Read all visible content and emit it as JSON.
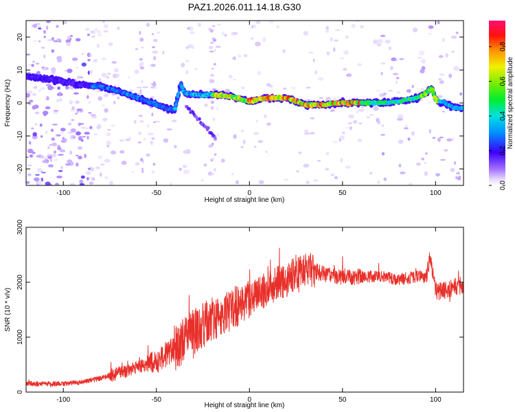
{
  "title": "PAZ1.2026.011.14.18.G30",
  "chart_data": [
    {
      "type": "heatmap",
      "title": "PAZ1.2026.011.14.18.G30",
      "xlabel": "Height of straight line (km)",
      "ylabel": "Frequency (Hz)",
      "xlim": [
        -120,
        115
      ],
      "ylim": [
        -25,
        25
      ],
      "xticks": [
        {
          "value": -100,
          "label": "-100"
        },
        {
          "value": -50,
          "label": "-50"
        },
        {
          "value": 0,
          "label": "0"
        },
        {
          "value": 50,
          "label": "50"
        },
        {
          "value": 100,
          "label": "100"
        }
      ],
      "yticks": [
        {
          "value": -20,
          "label": "-20"
        },
        {
          "value": -10,
          "label": "-10"
        },
        {
          "value": 0,
          "label": "0"
        },
        {
          "value": 10,
          "label": "10"
        },
        {
          "value": 20,
          "label": "20"
        }
      ],
      "colorbar": {
        "label": "Normalized spectral amplitude",
        "range": [
          0,
          0.95
        ],
        "ticks": [
          {
            "value": 0.0,
            "label": "0.0"
          },
          {
            "value": 0.2,
            "label": "0.2"
          },
          {
            "value": 0.4,
            "label": "0.4"
          },
          {
            "value": 0.6,
            "label": "0.6"
          },
          {
            "value": 0.8,
            "label": "0.8"
          }
        ]
      },
      "ridge": {
        "x": [
          -120,
          -110,
          -100,
          -90,
          -80,
          -70,
          -60,
          -50,
          -45,
          -40,
          -37,
          -35,
          -30,
          -20,
          -10,
          0,
          10,
          20,
          30,
          40,
          50,
          60,
          70,
          80,
          90,
          95,
          98,
          100,
          105,
          110,
          115
        ],
        "y": [
          8,
          7.5,
          6.5,
          5.5,
          5,
          3.5,
          1.5,
          -0.5,
          -1.5,
          -2,
          6,
          3,
          2.5,
          2.5,
          2,
          0.5,
          1.5,
          1.5,
          -0.5,
          -0.5,
          0,
          0,
          0,
          0.5,
          1.5,
          3,
          4.5,
          1,
          0,
          -1.5,
          -1.5
        ]
      }
    },
    {
      "type": "line",
      "xlabel": "Height of straight line (km)",
      "ylabel": "SNR (10 * v/v)",
      "xlim": [
        -120,
        115
      ],
      "ylim": [
        0,
        3000
      ],
      "xticks": [
        {
          "value": -100,
          "label": "-100"
        },
        {
          "value": -50,
          "label": "-50"
        },
        {
          "value": 0,
          "label": "0"
        },
        {
          "value": 50,
          "label": "50"
        },
        {
          "value": 100,
          "label": "100"
        }
      ],
      "yticks": [
        {
          "value": 0,
          "label": "0"
        },
        {
          "value": 1000,
          "label": "1000"
        },
        {
          "value": 2000,
          "label": "2000"
        },
        {
          "value": 3000,
          "label": "3000"
        }
      ],
      "series": [
        {
          "name": "SNR",
          "color": "#e8302a",
          "x": [
            -120,
            -100,
            -90,
            -80,
            -70,
            -60,
            -50,
            -40,
            -30,
            -20,
            -10,
            0,
            10,
            20,
            25,
            30,
            40,
            50,
            60,
            70,
            80,
            90,
            95,
            97,
            100,
            105,
            110,
            115
          ],
          "values": [
            150,
            150,
            180,
            250,
            350,
            450,
            550,
            800,
            1100,
            1300,
            1500,
            1700,
            1900,
            2050,
            2200,
            2250,
            2150,
            2100,
            2100,
            2100,
            2050,
            2100,
            2100,
            2450,
            1850,
            1850,
            1900,
            1950
          ]
        }
      ]
    }
  ]
}
